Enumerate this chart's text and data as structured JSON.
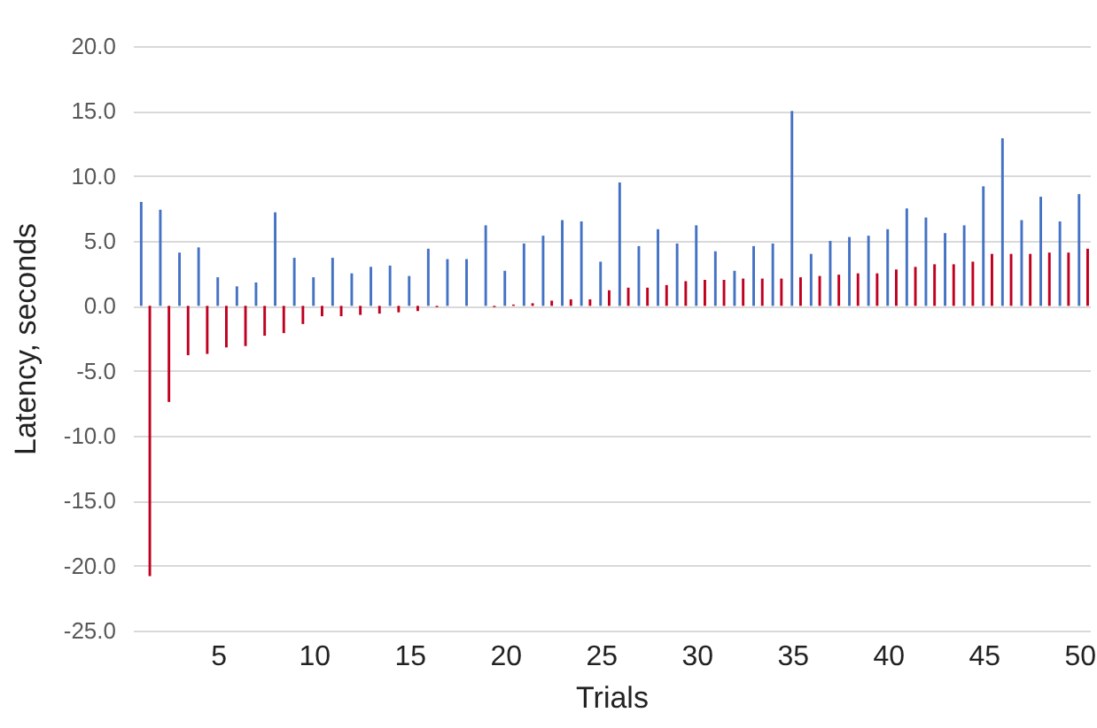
{
  "chart_data": {
    "type": "bar",
    "xlabel": "Trials",
    "ylabel": "Latency, seconds",
    "categories": [
      null,
      null,
      null,
      null,
      "5",
      null,
      null,
      null,
      null,
      "10",
      null,
      null,
      null,
      null,
      "15",
      null,
      null,
      null,
      null,
      "20",
      null,
      null,
      null,
      null,
      "25",
      null,
      null,
      null,
      null,
      "30",
      null,
      null,
      null,
      null,
      "35",
      null,
      null,
      null,
      null,
      "40",
      null,
      null,
      null,
      null,
      "45",
      null,
      null,
      null,
      null,
      "50"
    ],
    "series": [
      {
        "color": "#4472c4",
        "values": [
          8.0,
          7.4,
          4.1,
          4.5,
          2.2,
          1.5,
          1.8,
          7.2,
          3.7,
          2.2,
          3.7,
          2.5,
          3.0,
          3.1,
          2.3,
          4.4,
          3.6,
          3.6,
          6.2,
          2.7,
          4.8,
          5.4,
          6.6,
          6.5,
          3.4,
          9.5,
          4.6,
          5.9,
          4.8,
          6.2,
          4.2,
          2.7,
          4.6,
          4.8,
          15.0,
          4.0,
          5.0,
          5.3,
          5.4,
          5.9,
          7.5,
          6.8,
          5.6,
          6.2,
          9.2,
          12.9,
          6.6,
          8.4,
          6.5,
          8.6
        ]
      },
      {
        "color": "#c00020",
        "values": [
          -20.8,
          -7.4,
          -3.8,
          -3.7,
          -3.2,
          -3.1,
          -2.3,
          -2.1,
          -1.4,
          -0.8,
          -0.8,
          -0.7,
          -0.6,
          -0.5,
          -0.4,
          -0.1,
          0,
          0,
          -0.1,
          0.1,
          0.2,
          0.4,
          0.5,
          0.5,
          1.2,
          1.4,
          1.4,
          1.6,
          1.9,
          2.0,
          2.0,
          2.1,
          2.1,
          2.1,
          2.2,
          2.3,
          2.4,
          2.5,
          2.5,
          2.8,
          3.0,
          3.2,
          3.2,
          3.4,
          4.0,
          4.0,
          4.0,
          4.1,
          4.1,
          4.4
        ]
      }
    ],
    "ylim": [
      -25,
      20
    ],
    "yticks": [
      {
        "value": -25,
        "label": "-25.0"
      },
      {
        "value": -20,
        "label": "-20.0"
      },
      {
        "value": -15,
        "label": "-15.0"
      },
      {
        "value": -10,
        "label": "-10.0"
      },
      {
        "value": -5,
        "label": "-5.0"
      },
      {
        "value": 0,
        "label": "0.0"
      },
      {
        "value": 5,
        "label": "5.0"
      },
      {
        "value": 10,
        "label": "10.0"
      },
      {
        "value": 15,
        "label": "15.0"
      },
      {
        "value": 20,
        "label": "20.0"
      }
    ],
    "grid": "y"
  }
}
